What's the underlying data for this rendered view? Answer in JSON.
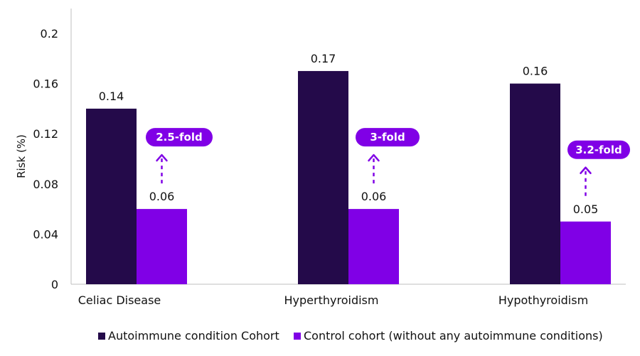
{
  "chart_data": {
    "type": "bar",
    "categories": [
      "Celiac Disease",
      "Hyperthyroidism",
      "Hypothyroidism"
    ],
    "series": [
      {
        "name": "Autoimmune condition Cohort",
        "values": [
          0.14,
          0.17,
          0.16
        ],
        "labels": [
          "0.14",
          "0.17",
          "0.16"
        ],
        "color": "#240a4a"
      },
      {
        "name": "Control cohort (without any autoimmune conditions)",
        "values": [
          0.06,
          0.06,
          0.05
        ],
        "labels": [
          "0.06",
          "0.06",
          "0.05"
        ],
        "color": "#8000e6"
      }
    ],
    "ylabel": "Risk (%)",
    "xlabel": "",
    "ylim": [
      0,
      0.2
    ],
    "yticks": [
      0,
      0.04,
      0.08,
      0.12,
      0.16,
      0.2
    ],
    "ytick_labels": [
      "0",
      "0.04",
      "0.08",
      "0.12",
      "0.16",
      "0.2"
    ],
    "annotations": [
      "2.5-fold",
      "3-fold",
      "3.2-fold"
    ],
    "annotation_color": "#8000e6",
    "grid": false,
    "legend_position": "bottom"
  }
}
